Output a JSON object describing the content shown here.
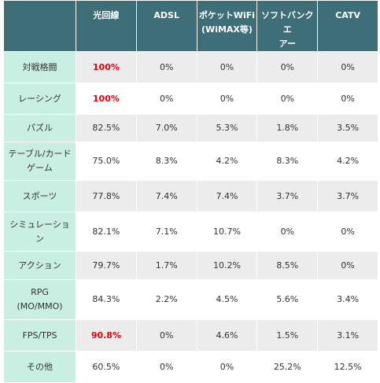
{
  "table": {
    "headers": [
      "",
      "光回線",
      "ADSL",
      "ポケットWiFi\n(WiMAX等)",
      "ソフトバンクエ\nアー",
      "CATV"
    ],
    "rows": [
      {
        "label": "対戦格闘",
        "cells": [
          "100%",
          "0%",
          "0%",
          "0%",
          "0%"
        ],
        "highlight": [
          0
        ]
      },
      {
        "label": "レーシング",
        "cells": [
          "100%",
          "0%",
          "0%",
          "0%",
          "0%"
        ],
        "highlight": [
          0
        ]
      },
      {
        "label": "パズル",
        "cells": [
          "82.5%",
          "7.0%",
          "5.3%",
          "1.8%",
          "3.5%"
        ],
        "highlight": []
      },
      {
        "label": "テーブル/カード\nゲーム",
        "cells": [
          "75.0%",
          "8.3%",
          "4.2%",
          "8.3%",
          "4.2%"
        ],
        "highlight": []
      },
      {
        "label": "スポーツ",
        "cells": [
          "77.8%",
          "7.4%",
          "7.4%",
          "3.7%",
          "3.7%"
        ],
        "highlight": []
      },
      {
        "label": "シミュレーショ\nン",
        "cells": [
          "82.1%",
          "7.1%",
          "10.7%",
          "0%",
          "0%"
        ],
        "highlight": []
      },
      {
        "label": "アクション",
        "cells": [
          "79.7%",
          "1.7%",
          "10.2%",
          "8.5%",
          "0%"
        ],
        "highlight": []
      },
      {
        "label": "RPG\n(MO/MMO)",
        "cells": [
          "84.3%",
          "2.2%",
          "4.5%",
          "5.6%",
          "3.4%"
        ],
        "highlight": []
      },
      {
        "label": "FPS/TPS",
        "cells": [
          "90.8%",
          "0%",
          "4.6%",
          "1.5%",
          "3.1%"
        ],
        "highlight": [
          0
        ]
      },
      {
        "label": "その他",
        "cells": [
          "60.5%",
          "0%",
          "0%",
          "25.2%",
          "12.5%"
        ],
        "highlight": []
      }
    ]
  },
  "colors": {
    "header_bg": "#3e6e78",
    "row_label_bg": "#c8efe1",
    "stripe_bg": "#ececec",
    "highlight_text": "#e60012"
  }
}
